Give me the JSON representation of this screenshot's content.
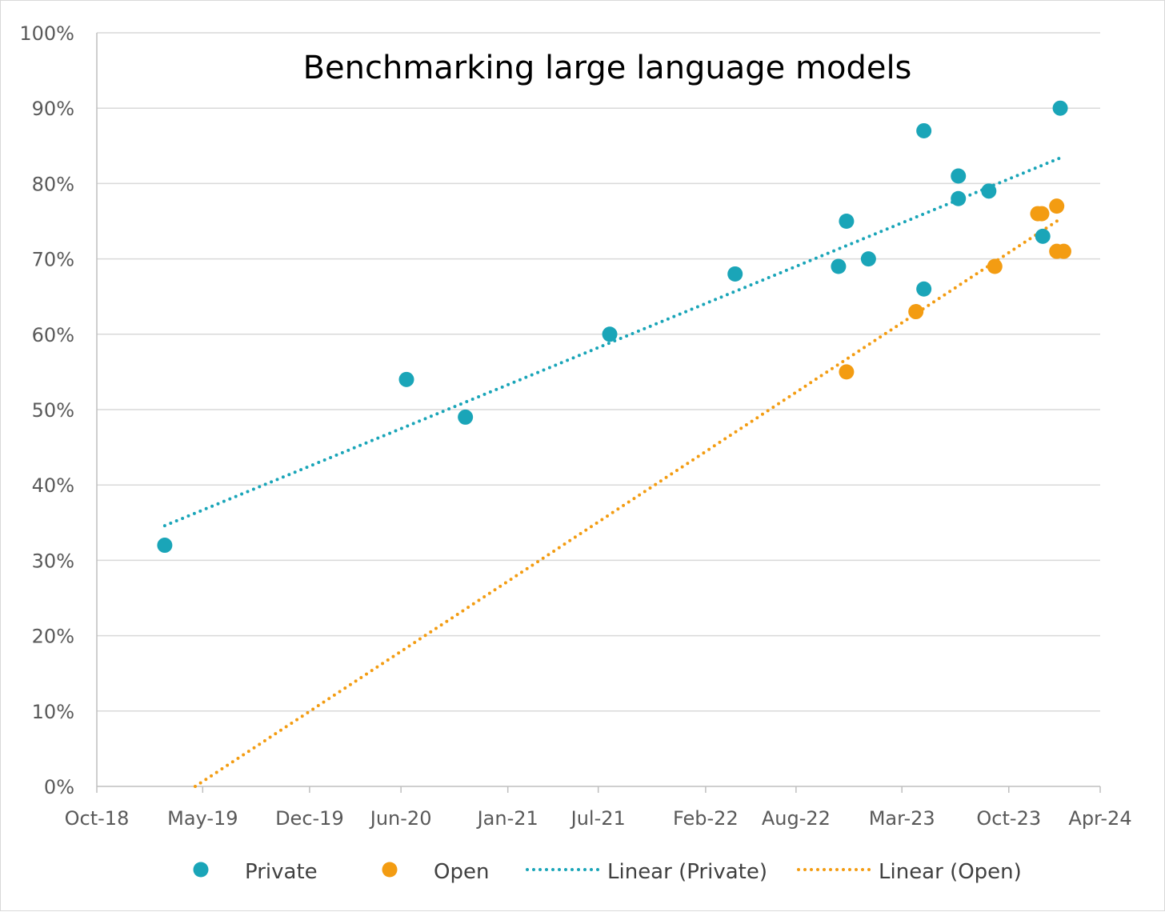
{
  "chart_data": {
    "type": "scatter",
    "title": "Benchmarking large language models",
    "xlabel": "",
    "ylabel": "",
    "x_axis": {
      "type": "date",
      "min": "2018-10-01",
      "max": "2024-04-01",
      "ticks": [
        "2018-10-01",
        "2019-05-01",
        "2019-12-01",
        "2020-06-01",
        "2021-01-01",
        "2021-07-01",
        "2022-02-01",
        "2022-08-01",
        "2023-03-01",
        "2023-10-01",
        "2024-04-01"
      ],
      "tick_labels": [
        "Oct-18",
        "May-19",
        "Dec-19",
        "Jun-20",
        "Jan-21",
        "Jul-21",
        "Feb-22",
        "Aug-22",
        "Mar-23",
        "Oct-23",
        "Apr-24"
      ]
    },
    "y_axis": {
      "min": 0,
      "max": 100,
      "step": 10,
      "tick_labels": [
        "0%",
        "10%",
        "20%",
        "30%",
        "40%",
        "50%",
        "60%",
        "70%",
        "80%",
        "90%",
        "100%"
      ]
    },
    "grid": "horizontal",
    "legend_position": "bottom",
    "series": [
      {
        "name": "Private",
        "marker": "circle",
        "color": "#1aa5b8",
        "points": [
          {
            "x": "2019-02-14",
            "y": 32
          },
          {
            "x": "2020-06-12",
            "y": 54
          },
          {
            "x": "2020-10-08",
            "y": 49
          },
          {
            "x": "2021-07-24",
            "y": 60
          },
          {
            "x": "2022-04-01",
            "y": 68
          },
          {
            "x": "2022-10-25",
            "y": 69
          },
          {
            "x": "2022-11-10",
            "y": 75
          },
          {
            "x": "2022-12-24",
            "y": 70
          },
          {
            "x": "2023-04-14",
            "y": 87
          },
          {
            "x": "2023-04-14",
            "y": 66
          },
          {
            "x": "2023-06-22",
            "y": 81
          },
          {
            "x": "2023-06-22",
            "y": 78
          },
          {
            "x": "2023-08-22",
            "y": 79
          },
          {
            "x": "2023-12-08",
            "y": 73
          },
          {
            "x": "2024-01-12",
            "y": 90
          }
        ]
      },
      {
        "name": "Open",
        "marker": "circle",
        "color": "#f39c12",
        "points": [
          {
            "x": "2022-11-10",
            "y": 55
          },
          {
            "x": "2023-03-29",
            "y": 63
          },
          {
            "x": "2023-09-03",
            "y": 69
          },
          {
            "x": "2023-11-28",
            "y": 76
          },
          {
            "x": "2023-12-06",
            "y": 76
          },
          {
            "x": "2024-01-05",
            "y": 77
          },
          {
            "x": "2024-01-05",
            "y": 71
          },
          {
            "x": "2024-01-19",
            "y": 71
          }
        ]
      }
    ],
    "trendlines": [
      {
        "name": "Linear (Private)",
        "series": "Private",
        "color": "#1aa5b8",
        "style": "dotted",
        "from": {
          "x": "2019-02-14",
          "y": 34.6
        },
        "to": {
          "x": "2024-01-12",
          "y": 83.4
        }
      },
      {
        "name": "Linear (Open)",
        "series": "Open",
        "color": "#f39c12",
        "style": "dotted",
        "from": {
          "x": "2019-04-16",
          "y": 0
        },
        "to": {
          "x": "2024-01-12",
          "y": 75.3
        }
      }
    ],
    "legend": [
      {
        "label": "Private",
        "kind": "marker",
        "color": "#1aa5b8"
      },
      {
        "label": "Open",
        "kind": "marker",
        "color": "#f39c12"
      },
      {
        "label": "Linear (Private)",
        "kind": "dotted-line",
        "color": "#1aa5b8"
      },
      {
        "label": "Linear (Open)",
        "kind": "dotted-line",
        "color": "#f39c12"
      }
    ]
  }
}
